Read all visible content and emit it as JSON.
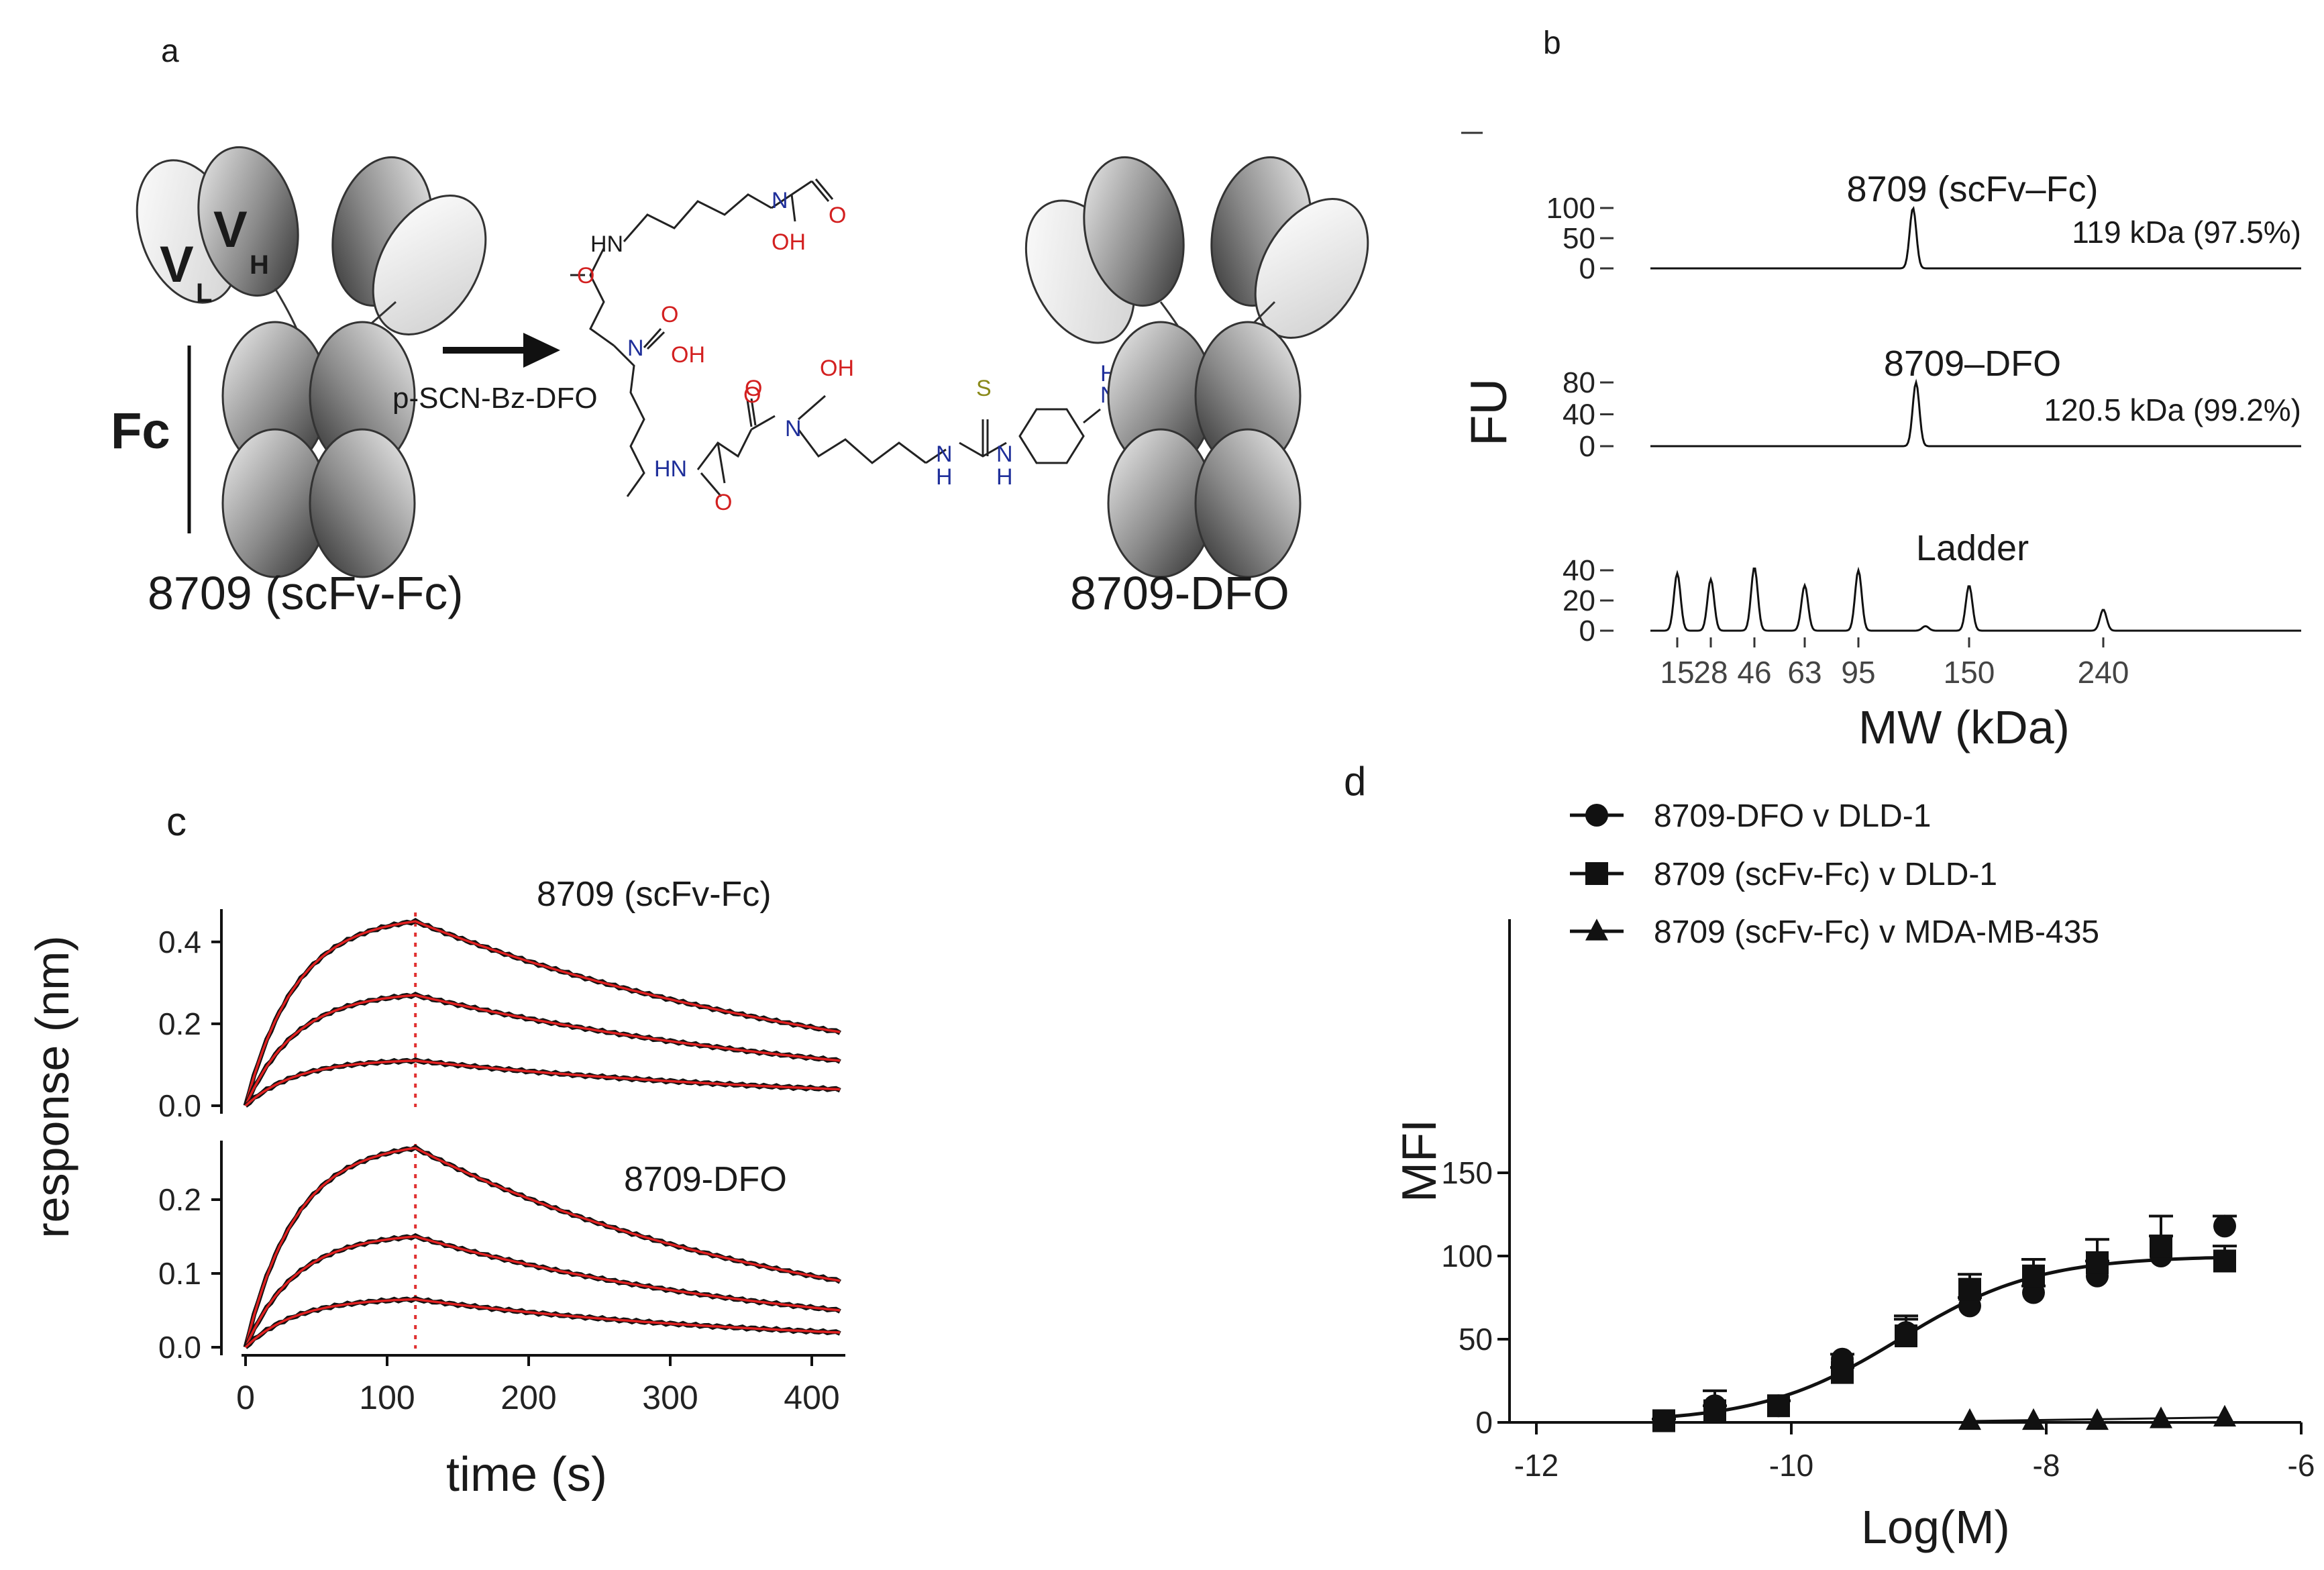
{
  "panels": {
    "a": {
      "label": "a",
      "domain_labels": {
        "vl": "V",
        "vl_sub": "L",
        "vh": "V",
        "vh_sub": "H",
        "fc": "Fc"
      },
      "reagent": "p-SCN-Bz-DFO",
      "left_name": "8709 (scFv-Fc)",
      "right_name": "8709-DFO",
      "chem_labels": {
        "hn1": "HN",
        "o1": "O",
        "n1": "N",
        "oh1": "OH",
        "o_acetyl": "O",
        "o2": "O",
        "n2": "N",
        "oh2": "OH",
        "o3": "O",
        "hn2": "HN",
        "o4": "O",
        "o5": "O",
        "n3": "N",
        "oh3": "OH",
        "s1": "S",
        "nh_a": "N",
        "h_a": "H",
        "nh_b": "N",
        "h_b": "H",
        "s2": "S",
        "nh_c": "N",
        "h_c": "H",
        "nh_d": "N",
        "h_d": "H"
      }
    },
    "b": {
      "label": "b",
      "ylabel": "FU",
      "xlabel": "MW (kDa)",
      "traces": [
        {
          "title": "8709 (scFv–Fc)",
          "annotation": "119 kDa (97.5%)",
          "yticks": [
            "100",
            "50",
            "0"
          ]
        },
        {
          "title": "8709–DFO",
          "annotation": "120.5 kDa (99.2%)",
          "yticks": [
            "80",
            "40",
            "0"
          ]
        },
        {
          "title": "Ladder",
          "annotation": "",
          "yticks": [
            "40",
            "20",
            "0"
          ]
        }
      ],
      "xticks": [
        "15",
        "28",
        "46",
        "63",
        "95",
        "150",
        "240"
      ]
    },
    "c": {
      "label": "c",
      "ylabel": "response (nm)",
      "xlabel": "time (s)",
      "top_title": "8709 (scFv-Fc)",
      "bottom_title": "8709-DFO",
      "top_yticks": [
        "0.4",
        "0.2",
        "0.0"
      ],
      "bottom_yticks": [
        "0.2",
        "0.1",
        "0.0"
      ],
      "xticks": [
        "0",
        "100",
        "200",
        "300",
        "400"
      ]
    },
    "d": {
      "label": "d",
      "ylabel": "MFI",
      "xlabel": "Log(M)",
      "legend": [
        "8709-DFO v DLD-1",
        "8709 (scFv-Fc) v DLD-1",
        "8709 (scFv-Fc) v MDA-MB-435"
      ],
      "yticks": [
        "150",
        "100",
        "50",
        "0"
      ],
      "xticks": [
        "-12",
        "-10",
        "-8",
        "-6"
      ]
    }
  },
  "chart_data": [
    {
      "type": "line",
      "panel": "b",
      "title": "",
      "xlabel": "MW (kDa)",
      "ylabel": "FU",
      "series": [
        {
          "name": "8709 (scFv–Fc)",
          "peak_kda": 119,
          "purity_percent": 97.5,
          "peak_fu": 100
        },
        {
          "name": "8709–DFO",
          "peak_kda": 120.5,
          "purity_percent": 99.2,
          "peak_fu": 80
        },
        {
          "name": "Ladder",
          "peaks_kda": [
            15,
            28,
            46,
            63,
            95,
            150,
            240
          ],
          "peak_fu": [
            38,
            34,
            42,
            30,
            40,
            30,
            14
          ]
        }
      ]
    },
    {
      "type": "line",
      "panel": "c",
      "xlabel": "time (s)",
      "ylabel": "response (nm)",
      "xlim": [
        0,
        420
      ],
      "association_end_s": 120,
      "subplots": [
        {
          "title": "8709 (scFv-Fc)",
          "ylim": [
            0,
            0.48
          ],
          "series": [
            {
              "name": "",
              "peak": 0.45,
              "end": 0.18
            },
            {
              "name": "",
              "peak": 0.27,
              "end": 0.11
            },
            {
              "name": "",
              "peak": 0.11,
              "end": 0.04
            }
          ]
        },
        {
          "title": "8709-DFO",
          "ylim": [
            0,
            0.28
          ],
          "series": [
            {
              "name": "",
              "peak": 0.27,
              "end": 0.09
            },
            {
              "name": "",
              "peak": 0.15,
              "end": 0.05
            },
            {
              "name": "",
              "peak": 0.065,
              "end": 0.02
            }
          ]
        }
      ]
    },
    {
      "type": "scatter",
      "panel": "d",
      "xlabel": "Log(M)",
      "ylabel": "MFI",
      "xlim": [
        -12,
        -6
      ],
      "ylim": [
        0,
        150
      ],
      "fit": {
        "bottom": 0,
        "top": 100,
        "logEC50": -9.15,
        "hill": 0.8
      },
      "series": [
        {
          "name": "8709-DFO v DLD-1",
          "marker": "circle",
          "x": [
            -11,
            -10.6,
            -10.1,
            -9.6,
            -9.1,
            -8.6,
            -8.1,
            -7.6,
            -7.1,
            -6.6
          ],
          "y": [
            1,
            10,
            10,
            38,
            54,
            70,
            78,
            88,
            100,
            118
          ],
          "err": [
            1,
            9,
            3,
            3,
            8,
            5,
            4,
            9,
            12,
            6
          ]
        },
        {
          "name": "8709 (scFv-Fc) v DLD-1",
          "marker": "square",
          "x": [
            -11,
            -10.6,
            -10.1,
            -9.6,
            -9.1,
            -8.6,
            -8.1,
            -7.6,
            -7.1,
            -6.6
          ],
          "y": [
            1,
            7,
            10,
            30,
            52,
            80,
            88,
            96,
            106,
            97
          ],
          "err": [
            1,
            3,
            3,
            3,
            12,
            9,
            10,
            14,
            18,
            9
          ]
        },
        {
          "name": "8709 (scFv-Fc) v MDA-MB-435",
          "marker": "triangle",
          "x": [
            -8.6,
            -8.1,
            -7.6,
            -7.1,
            -6.6
          ],
          "y": [
            1,
            1,
            1,
            2,
            3
          ],
          "err": [
            0,
            0,
            0,
            0,
            0
          ]
        }
      ]
    }
  ]
}
